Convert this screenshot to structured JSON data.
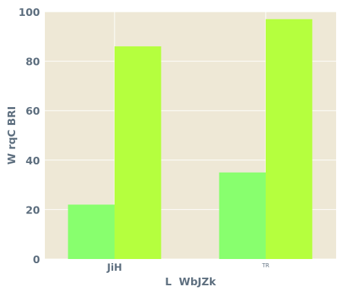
{
  "chart_data": {
    "type": "bar",
    "title": "",
    "xlabel": "L  WbJZk",
    "ylabel": "W rqC BRI",
    "categories": [
      "JiH",
      "TR"
    ],
    "series": [
      {
        "values": [
          22,
          35
        ],
        "color": "#88ff6e"
      },
      {
        "values": [
          86,
          97
        ],
        "color": "#b5ff3e"
      }
    ],
    "ylim": [
      0,
      100
    ],
    "yticks": [
      0,
      20,
      40,
      60,
      80,
      100
    ],
    "grid": true,
    "background_color": "#eee8d6",
    "grid_color": "#ffffff",
    "text_color": "#5f7080"
  }
}
